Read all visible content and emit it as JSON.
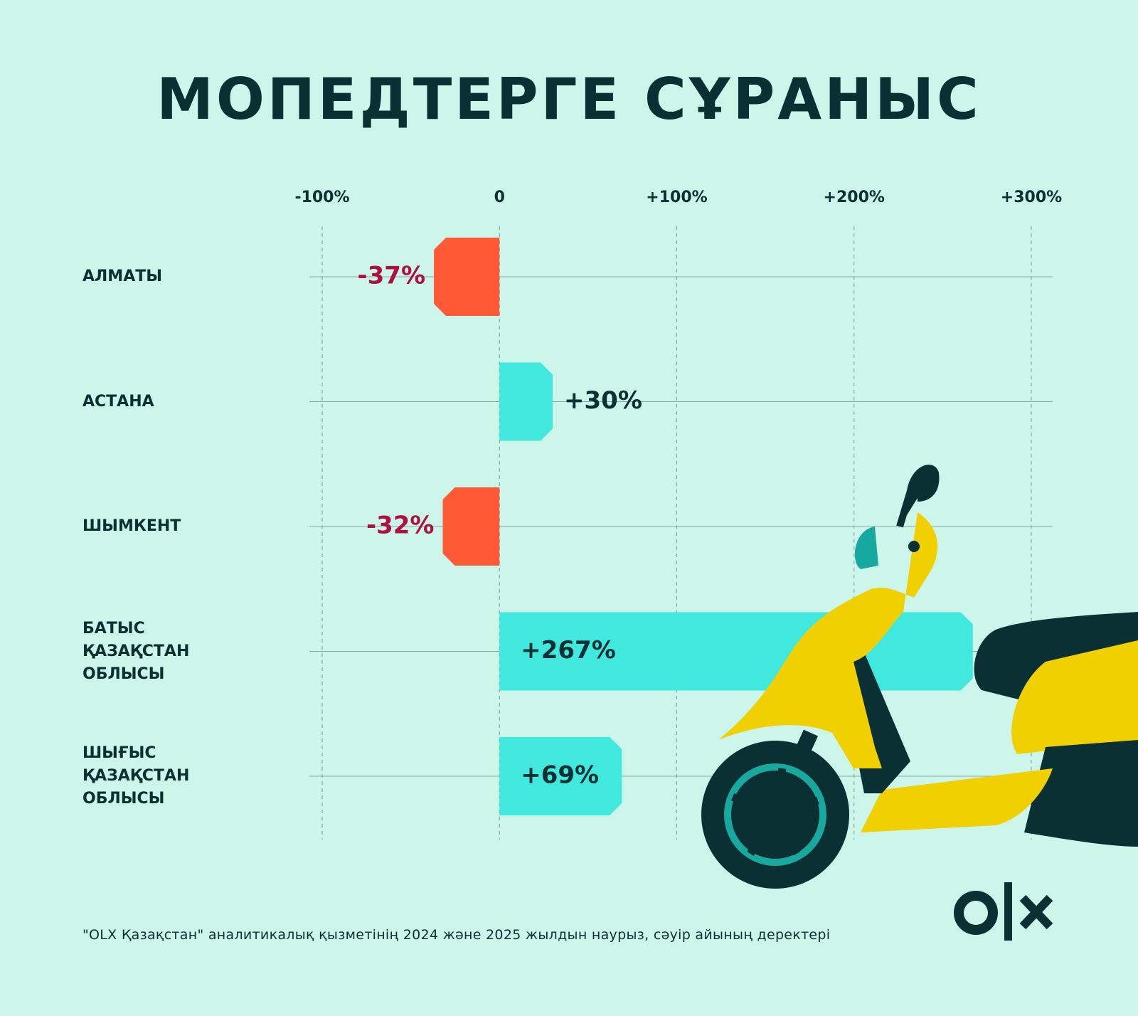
{
  "chart_data": {
    "type": "bar",
    "orientation": "horizontal",
    "title": "МОПЕДТЕРГЕ СҰРАНЫС",
    "categories": [
      "АЛМАТЫ",
      "АСТАНА",
      "ШЫМКЕНТ",
      "БАТЫС ҚАЗАҚСТАН ОБЛЫСЫ",
      "ШЫҒЫС ҚАЗАҚСТАН ОБЛЫСЫ"
    ],
    "values": [
      -37,
      30,
      -32,
      267,
      69
    ],
    "value_labels": [
      "-37%",
      "+30%",
      "-32%",
      "+267%",
      "+69%"
    ],
    "colors": {
      "positive": "#40e8de",
      "negative": "#ff5a36"
    },
    "xlim": [
      -100,
      300
    ],
    "xticks": [
      {
        "value": -100,
        "label": "-100%"
      },
      0,
      {
        "value": 100,
        "label": "+100%"
      },
      {
        "value": 200,
        "label": "+200%"
      },
      {
        "value": 300,
        "label": "+300%"
      }
    ],
    "grid": true,
    "footnote": "\"OLX Қазақстан\" аналитикалық қызметінің 2024 және 2025 жылдын наурыз, сәуір айының деректері"
  }
}
